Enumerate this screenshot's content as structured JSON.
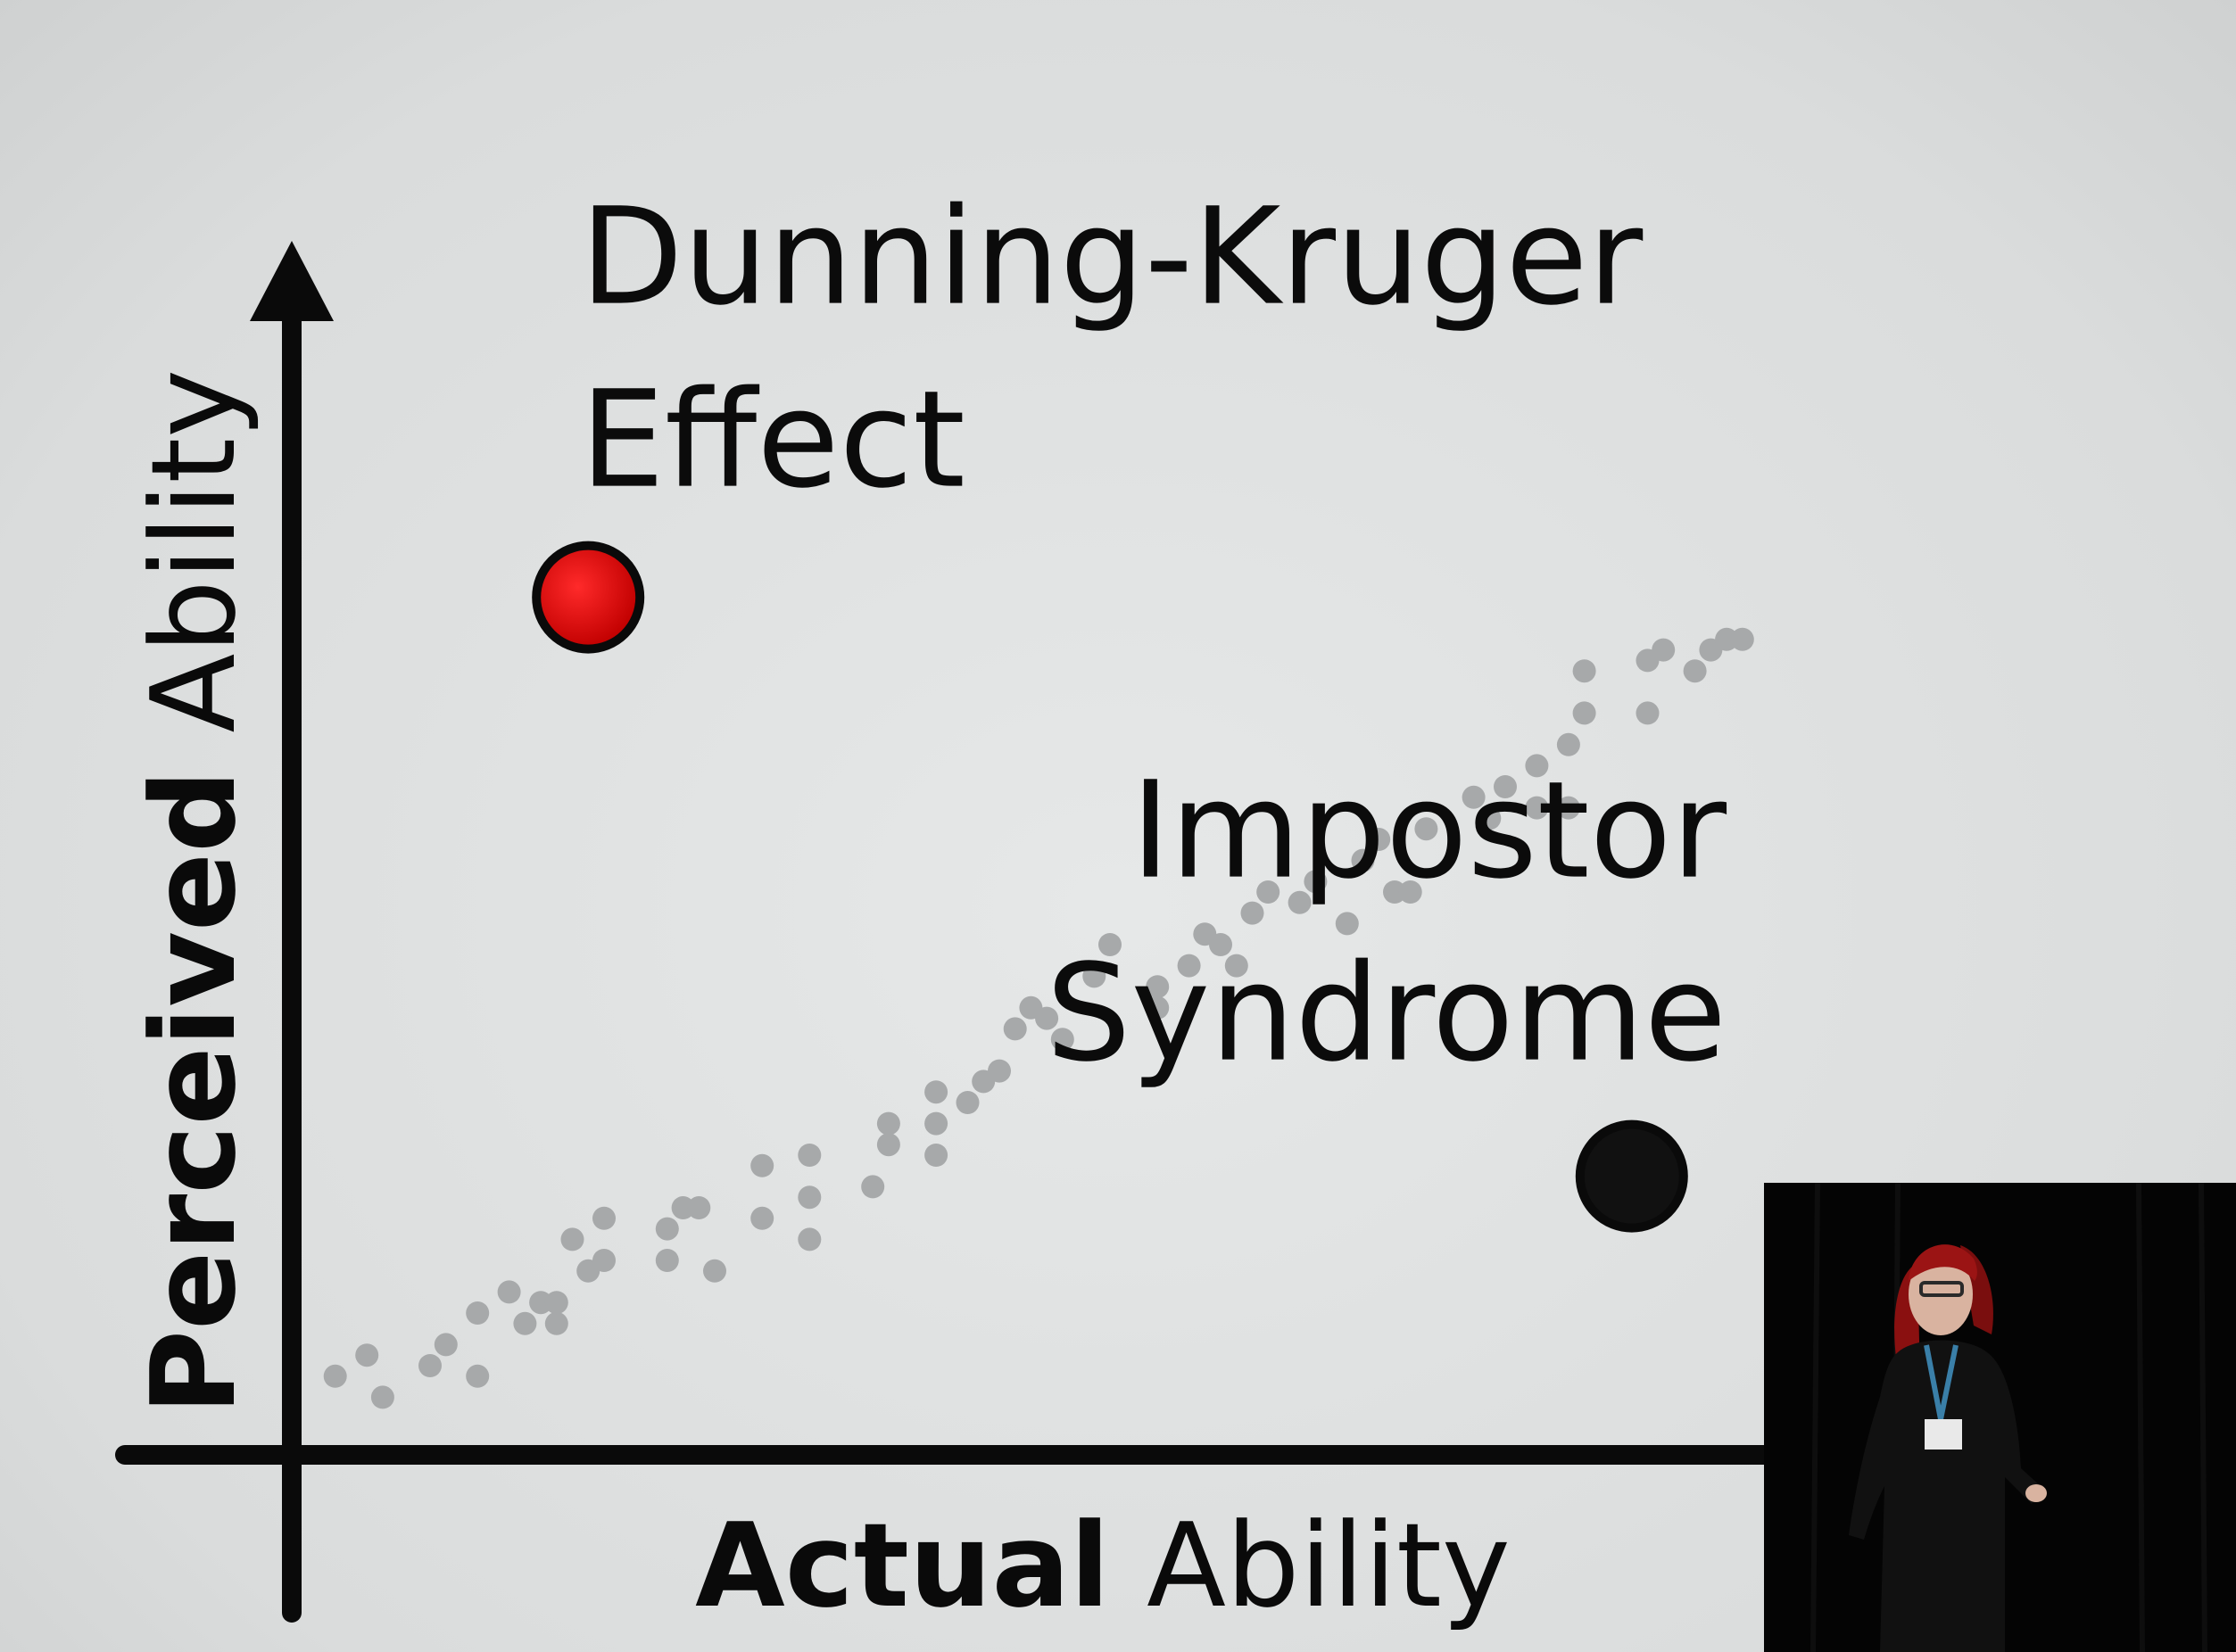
{
  "chart_data": {
    "type": "scatter",
    "title": "",
    "xlabel": {
      "bold": "Actual",
      "regular": " Ability"
    },
    "ylabel": {
      "bold": "Perceived",
      "regular": " Ability"
    },
    "xlim": [
      0,
      100
    ],
    "ylim": [
      0,
      100
    ],
    "grid": false,
    "axis_arrow": "y",
    "annotations": [
      {
        "lines": [
          "Dunning-Kruger",
          "Effect"
        ],
        "x": 17,
        "y": 78,
        "anchor": "start"
      },
      {
        "lines": [
          "Impostor",
          "Syndrome"
        ],
        "x": 89,
        "y": 18,
        "anchor": "end"
      }
    ],
    "highlight_points": [
      {
        "name": "dunning-kruger-point",
        "x": 17,
        "y": 78,
        "color": "#d00000"
      },
      {
        "name": "impostor-point",
        "x": 83,
        "y": 23,
        "color": "#111111"
      }
    ],
    "series": [
      {
        "color": "#a7a9aa",
        "points": [
          [
            1,
            4
          ],
          [
            3,
            6
          ],
          [
            4,
            2
          ],
          [
            7,
            5
          ],
          [
            8,
            7
          ],
          [
            10,
            4
          ],
          [
            10,
            10
          ],
          [
            12,
            12
          ],
          [
            13,
            9
          ],
          [
            14,
            11
          ],
          [
            15,
            9
          ],
          [
            15,
            11
          ],
          [
            16,
            17
          ],
          [
            17,
            14
          ],
          [
            18,
            15
          ],
          [
            18,
            19
          ],
          [
            22,
            15
          ],
          [
            22,
            18
          ],
          [
            23,
            20
          ],
          [
            24,
            20
          ],
          [
            25,
            14
          ],
          [
            28,
            19
          ],
          [
            28,
            24
          ],
          [
            31,
            17
          ],
          [
            31,
            21
          ],
          [
            31,
            25
          ],
          [
            35,
            22
          ],
          [
            36,
            26
          ],
          [
            36,
            28
          ],
          [
            39,
            25
          ],
          [
            39,
            28
          ],
          [
            39,
            31
          ],
          [
            41,
            30
          ],
          [
            42,
            32
          ],
          [
            43,
            33
          ],
          [
            44,
            37
          ],
          [
            45,
            39
          ],
          [
            47,
            36
          ],
          [
            46,
            38
          ],
          [
            49,
            42
          ],
          [
            50,
            45
          ],
          [
            53,
            39
          ],
          [
            53,
            41
          ],
          [
            55,
            43
          ],
          [
            56,
            46
          ],
          [
            57,
            45
          ],
          [
            58,
            43
          ],
          [
            59,
            48
          ],
          [
            60,
            50
          ],
          [
            62,
            49
          ],
          [
            63,
            51
          ],
          [
            65,
            47
          ],
          [
            66,
            53
          ],
          [
            67,
            55
          ],
          [
            68,
            50
          ],
          [
            69,
            50
          ],
          [
            70,
            56
          ],
          [
            73,
            59
          ],
          [
            74,
            57
          ],
          [
            75,
            60
          ],
          [
            77,
            58
          ],
          [
            77,
            62
          ],
          [
            79,
            58
          ],
          [
            79,
            64
          ],
          [
            80,
            67
          ],
          [
            80,
            71
          ],
          [
            84,
            67
          ],
          [
            84,
            72
          ],
          [
            85,
            73
          ],
          [
            87,
            71
          ],
          [
            88,
            73
          ],
          [
            89,
            74
          ],
          [
            90,
            74
          ]
        ]
      }
    ]
  },
  "speaker_inset": {
    "badge_text": "",
    "background": "#040404"
  }
}
